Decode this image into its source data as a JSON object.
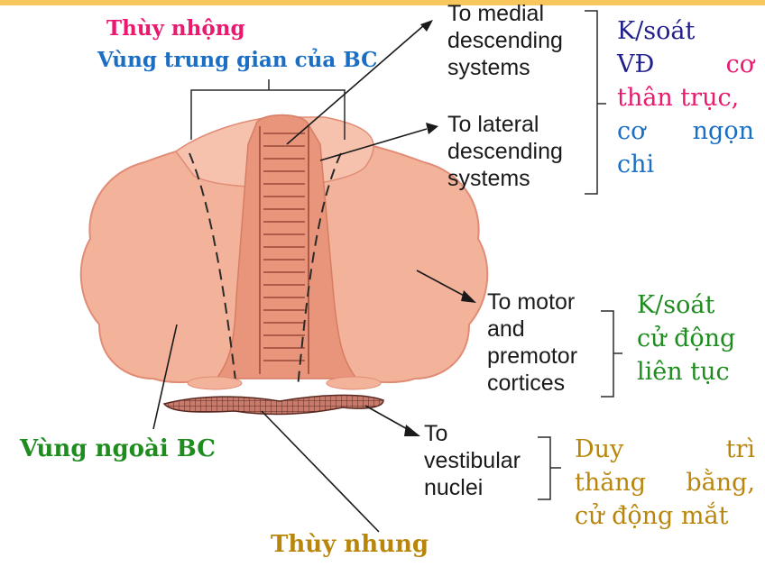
{
  "colors": {
    "vermis": "#e8196e",
    "intermediate": "#1a6fc4",
    "lateral": "#1e8c1e",
    "flocculus": "#b8860b",
    "navy": "#1f1f8c",
    "cerebellum_fill": "#f3b29a",
    "cerebellum_core": "#e89a80"
  },
  "labels": {
    "vermis": "Thùy nhộng",
    "intermediate_zone": "Vùng trung gian của BC",
    "lateral_zone": "Vùng ngoài BC",
    "flocculonodular": "Thùy nhung"
  },
  "targets": {
    "medial": [
      "To medial",
      "descending",
      "systems"
    ],
    "lateral": [
      "To lateral",
      "descending",
      "systems"
    ],
    "motor": [
      "To motor",
      "and",
      "premotor",
      "cortices"
    ],
    "vestibular": [
      "To",
      "vestibular",
      "nuclei"
    ]
  },
  "functions": {
    "axial_distal": {
      "line1": "K/soát",
      "line2_a": "VĐ",
      "line2_b": "cơ",
      "line3": "thân trục,",
      "line4_a": "cơ",
      "line4_b": "ngọn",
      "line5": "chi"
    },
    "continuous_movement": {
      "line1": "K/soát",
      "line2": "cử động",
      "line3": "liên tục"
    },
    "balance": {
      "line1_a": "Duy",
      "line1_b": "trì",
      "line2_a": "thăng",
      "line2_b": "bằng,",
      "line3": "cử động mắt"
    }
  }
}
